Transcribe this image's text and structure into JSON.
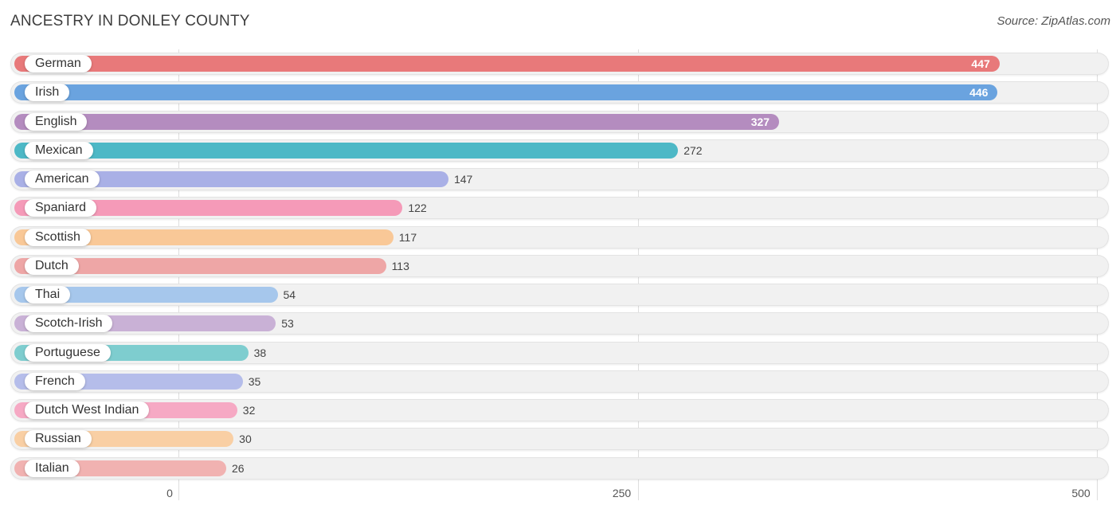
{
  "title": "ANCESTRY IN DONLEY COUNTY",
  "source": "Source: ZipAtlas.com",
  "chart_data": {
    "type": "bar",
    "orientation": "horizontal",
    "categories": [
      "German",
      "Irish",
      "English",
      "Mexican",
      "American",
      "Spaniard",
      "Scottish",
      "Dutch",
      "Thai",
      "Scotch-Irish",
      "Portuguese",
      "French",
      "Dutch West Indian",
      "Russian",
      "Italian"
    ],
    "values": [
      447,
      446,
      327,
      272,
      147,
      122,
      117,
      113,
      54,
      53,
      38,
      35,
      32,
      30,
      26
    ],
    "colors": [
      "#e8797a",
      "#6aa3df",
      "#b48cbf",
      "#4db8c6",
      "#a9b0e6",
      "#f59ab8",
      "#f9c897",
      "#eea6a6",
      "#a6c7ec",
      "#c9b1d6",
      "#7ecdcf",
      "#b5bdea",
      "#f6a9c4",
      "#f9cfa4",
      "#f1b2b1"
    ],
    "x_ticks": [
      "0",
      "250",
      "500"
    ],
    "xlim": [
      0,
      500
    ],
    "grid": true,
    "legend": "none"
  }
}
